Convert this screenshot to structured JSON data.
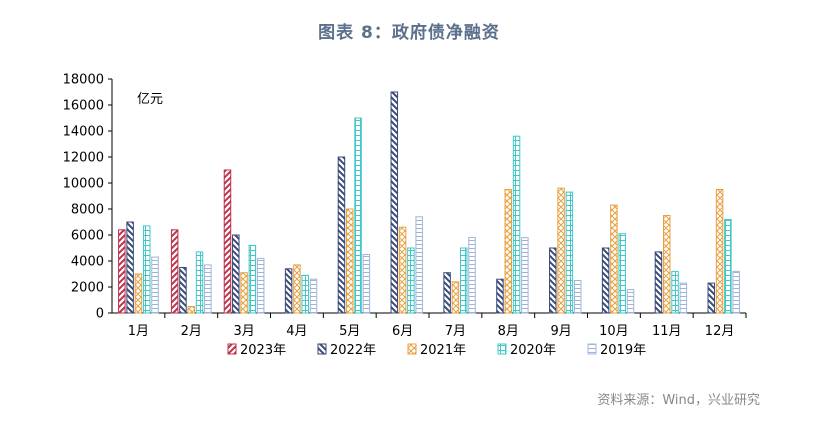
{
  "title": "图表 8：政府债净融资",
  "source": "资料来源：Wind，兴业研究",
  "chart_data": {
    "type": "bar",
    "unit_label": "亿元",
    "categories": [
      "1月",
      "2月",
      "3月",
      "4月",
      "5月",
      "6月",
      "7月",
      "8月",
      "9月",
      "10月",
      "11月",
      "12月"
    ],
    "ylim": [
      0,
      18000
    ],
    "yticks": [
      "0",
      "2000",
      "4000",
      "6000",
      "8000",
      "10000",
      "12000",
      "14000",
      "16000",
      "18000"
    ],
    "grid": false,
    "legend_position": "bottom",
    "series": [
      {
        "name": "2023年",
        "color": "#c0304a",
        "pattern": "diag-up",
        "values": [
          6400,
          6400,
          11000,
          null,
          null,
          null,
          null,
          null,
          null,
          null,
          null,
          null
        ]
      },
      {
        "name": "2022年",
        "color": "#3a4a78",
        "pattern": "diag-down",
        "values": [
          7000,
          3500,
          6000,
          3400,
          12000,
          17000,
          3100,
          2600,
          5000,
          5000,
          4700,
          2300
        ]
      },
      {
        "name": "2021年",
        "color": "#e8a040",
        "pattern": "cross",
        "values": [
          3000,
          500,
          3100,
          3700,
          8000,
          6600,
          2400,
          9500,
          9600,
          8300,
          7500,
          9500
        ]
      },
      {
        "name": "2020年",
        "color": "#40c8c8",
        "pattern": "grid",
        "values": [
          6700,
          4700,
          5200,
          2900,
          15000,
          5000,
          5000,
          13600,
          9300,
          6100,
          3200,
          7200
        ]
      },
      {
        "name": "2019年",
        "color": "#9fb4d8",
        "pattern": "hlines",
        "values": [
          4300,
          3700,
          4200,
          2600,
          4500,
          7400,
          5800,
          5800,
          2500,
          1800,
          2300,
          3200
        ]
      }
    ]
  }
}
